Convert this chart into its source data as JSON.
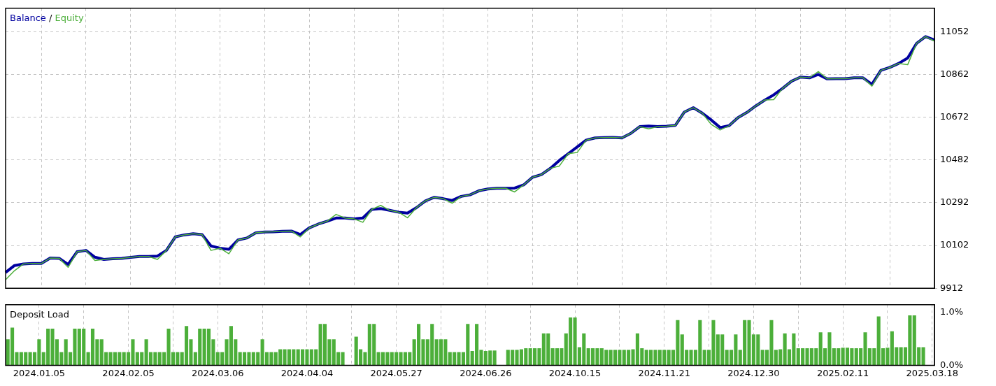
{
  "chart_data": [
    {
      "type": "line",
      "legend": "top left",
      "grid": true,
      "tick_labels": "y",
      "annotations": [
        "/"
      ],
      "categories": [
        null,
        null,
        null,
        null,
        "2024.01.05",
        null,
        null,
        null,
        null,
        null,
        null,
        null,
        null,
        null,
        "2024.02.05",
        null,
        null,
        null,
        null,
        null,
        null,
        null,
        null,
        null,
        "2024.03.06",
        null,
        null,
        null,
        null,
        null,
        null,
        null,
        null,
        null,
        "2024.04.04",
        null,
        null,
        null,
        null,
        null,
        null,
        null,
        null,
        null,
        "2024.05.27",
        null,
        null,
        null,
        null,
        null,
        null,
        null,
        null,
        null,
        "2024.06.26",
        null,
        null,
        null,
        null,
        null,
        null,
        null,
        null,
        null,
        "2024.10.15",
        null,
        null,
        null,
        null,
        null,
        null,
        null,
        null,
        null,
        "2024.11.21",
        null,
        null,
        null,
        null,
        null,
        null,
        null,
        null,
        null,
        "2024.12.30",
        null,
        null,
        null,
        null,
        null,
        null,
        null,
        null,
        null,
        "2025.02.11",
        null,
        null,
        null,
        null,
        null,
        null,
        null,
        null,
        null,
        "2025.03.18"
      ],
      "ylim": [
        9912,
        11156
      ],
      "yticks": [
        9912,
        10102,
        10292,
        10482,
        10672,
        10862,
        11052
      ],
      "series": [
        {
          "name": "Balance",
          "color": "#0000a0",
          "values": [
            9982,
            10013,
            10020,
            10022,
            10022,
            10046,
            10045,
            10018,
            10074,
            10080,
            10050,
            10040,
            10043,
            10045,
            10049,
            10053,
            10053,
            10055,
            10080,
            10140,
            10149,
            10154,
            10150,
            10100,
            10090,
            10085,
            10126,
            10135,
            10158,
            10162,
            10163,
            10165,
            10166,
            10151,
            10180,
            10197,
            10210,
            10224,
            10224,
            10220,
            10224,
            10262,
            10266,
            10258,
            10250,
            10246,
            10270,
            10300,
            10316,
            10310,
            10302,
            10320,
            10327,
            10345,
            10353,
            10356,
            10356,
            10357,
            10371,
            10405,
            10417,
            10445,
            10480,
            10510,
            10540,
            10570,
            10580,
            10581,
            10582,
            10580,
            10600,
            10630,
            10633,
            10630,
            10632,
            10636,
            10695,
            10714,
            10690,
            10660,
            10626,
            10634,
            10670,
            10693,
            10722,
            10748,
            10771,
            10800,
            10832,
            10850,
            10847,
            10862,
            10842,
            10843,
            10843,
            10847,
            10847,
            10818,
            10880,
            10893,
            10911,
            10935,
            11000,
            11030,
            11015
          ]
        },
        {
          "name": "Equity",
          "color": "#4caf3a",
          "values": [
            9950,
            9990,
            10020,
            10022,
            10022,
            10046,
            10045,
            10005,
            10074,
            10080,
            10035,
            10040,
            10043,
            10045,
            10049,
            10053,
            10053,
            10040,
            10080,
            10140,
            10149,
            10154,
            10150,
            10080,
            10090,
            10065,
            10126,
            10135,
            10158,
            10162,
            10163,
            10165,
            10166,
            10140,
            10180,
            10197,
            10210,
            10240,
            10224,
            10220,
            10205,
            10262,
            10280,
            10258,
            10250,
            10225,
            10270,
            10300,
            10316,
            10310,
            10290,
            10320,
            10327,
            10345,
            10353,
            10356,
            10356,
            10340,
            10371,
            10405,
            10417,
            10445,
            10455,
            10510,
            10515,
            10570,
            10580,
            10581,
            10582,
            10580,
            10600,
            10630,
            10620,
            10630,
            10632,
            10636,
            10695,
            10714,
            10690,
            10640,
            10615,
            10634,
            10670,
            10693,
            10722,
            10748,
            10750,
            10800,
            10832,
            10850,
            10847,
            10875,
            10842,
            10843,
            10843,
            10847,
            10847,
            10810,
            10880,
            10893,
            10911,
            10905,
            11000,
            11030,
            11010
          ]
        }
      ]
    },
    {
      "type": "bar",
      "title": "Deposit Load",
      "grid": "x",
      "categories": [
        null,
        null,
        null,
        null,
        null,
        null,
        null,
        "2024.01.05",
        null,
        null,
        null,
        null,
        null,
        null,
        null,
        null,
        null,
        null,
        null,
        null,
        null,
        null,
        null,
        null,
        null,
        null,
        null,
        "2024.02.05",
        null,
        null,
        null,
        null,
        null,
        null,
        null,
        null,
        null,
        null,
        null,
        null,
        null,
        null,
        null,
        null,
        null,
        null,
        null,
        "2024.03.06",
        null,
        null,
        null,
        null,
        null,
        null,
        null,
        null,
        null,
        null,
        null,
        null,
        null,
        null,
        null,
        null,
        null,
        null,
        null,
        "2024.04.04",
        null,
        null,
        null,
        null,
        null,
        null,
        null,
        null,
        null,
        null,
        null,
        null,
        null,
        null,
        null,
        null,
        null,
        null,
        null,
        "2024.05.27",
        null,
        null,
        null,
        null,
        null,
        null,
        null,
        null,
        null,
        null,
        null,
        null,
        null,
        null,
        null,
        null,
        null,
        null,
        null,
        "2024.06.26",
        null,
        null,
        null,
        null,
        null,
        null,
        null,
        null,
        null,
        null,
        null,
        null,
        null,
        null,
        null,
        null,
        null,
        null,
        null,
        "2024.10.15",
        null,
        null,
        null,
        null,
        null,
        null,
        null,
        null,
        null,
        null,
        null,
        null,
        null,
        null,
        null,
        null,
        null,
        null,
        null,
        "2024.11.21",
        null,
        null,
        null,
        null,
        null,
        null,
        null,
        null,
        null,
        null,
        null,
        null,
        null,
        null,
        null,
        null,
        null,
        null,
        null,
        "2024.12.30",
        null,
        null,
        null,
        null,
        null,
        null,
        null,
        null,
        null,
        null,
        null,
        null,
        null,
        null,
        null,
        null,
        null,
        null,
        null,
        "2025.02.11",
        null,
        null,
        null,
        null,
        null,
        null,
        null,
        null,
        null,
        null,
        null,
        null,
        null,
        null,
        null,
        null,
        null,
        null,
        null,
        "2025.03.18"
      ],
      "ylim": [
        0,
        1.14
      ],
      "yticks": [
        {
          "value": 0,
          "label": "0.0%"
        },
        {
          "value": 1,
          "label": "1.0%"
        }
      ],
      "color": "#4caf3a",
      "values": [
        0.49,
        0.71,
        0.25,
        0.25,
        0.25,
        0.25,
        0.25,
        0.49,
        0.25,
        0.69,
        0.69,
        0.49,
        0.25,
        0.49,
        0.25,
        0.69,
        0.69,
        0.69,
        0.25,
        0.69,
        0.49,
        0.49,
        0.25,
        0.25,
        0.25,
        0.25,
        0.25,
        0.25,
        0.49,
        0.25,
        0.25,
        0.49,
        0.25,
        0.25,
        0.25,
        0.25,
        0.69,
        0.25,
        0.25,
        0.25,
        0.74,
        0.49,
        0.25,
        0.69,
        0.69,
        0.69,
        0.49,
        0.25,
        0.25,
        0.49,
        0.74,
        0.49,
        0.25,
        0.25,
        0.25,
        0.25,
        0.25,
        0.49,
        0.25,
        0.25,
        0.25,
        0.3,
        0.3,
        0.3,
        0.3,
        0.3,
        0.3,
        0.3,
        0.3,
        0.3,
        0.78,
        0.78,
        0.49,
        0.49,
        0.25,
        0.25,
        null,
        null,
        0.54,
        0.3,
        0.25,
        0.78,
        0.78,
        0.25,
        0.25,
        0.25,
        0.25,
        0.25,
        0.25,
        0.25,
        0.25,
        0.49,
        0.78,
        0.49,
        0.49,
        0.78,
        0.49,
        0.49,
        0.49,
        0.25,
        0.25,
        0.25,
        0.25,
        0.78,
        0.27,
        0.78,
        0.29,
        0.27,
        0.28,
        0.28,
        null,
        null,
        0.29,
        0.29,
        0.29,
        0.3,
        0.32,
        0.32,
        0.32,
        0.32,
        0.6,
        0.6,
        0.32,
        0.32,
        0.32,
        0.6,
        0.9,
        0.9,
        0.34,
        0.6,
        0.32,
        0.32,
        0.32,
        0.32,
        0.29,
        0.29,
        0.29,
        0.29,
        0.29,
        0.29,
        0.3,
        0.6,
        0.32,
        0.29,
        0.29,
        0.29,
        0.29,
        0.29,
        0.29,
        0.29,
        0.85,
        0.58,
        0.29,
        0.29,
        0.29,
        0.85,
        0.29,
        0.29,
        0.85,
        0.58,
        0.58,
        0.29,
        0.29,
        0.58,
        0.29,
        0.85,
        0.85,
        0.58,
        0.58,
        0.29,
        0.29,
        0.85,
        0.29,
        0.3,
        0.6,
        0.3,
        0.6,
        0.32,
        0.32,
        0.32,
        0.32,
        0.32,
        0.62,
        0.32,
        0.62,
        0.32,
        0.32,
        0.33,
        0.33,
        0.32,
        0.32,
        0.32,
        0.62,
        0.32,
        0.32,
        0.92,
        0.32,
        0.33,
        0.64,
        0.34,
        0.34,
        0.34,
        0.94,
        0.94,
        0.34,
        0.34,
        null,
        null
      ]
    }
  ]
}
